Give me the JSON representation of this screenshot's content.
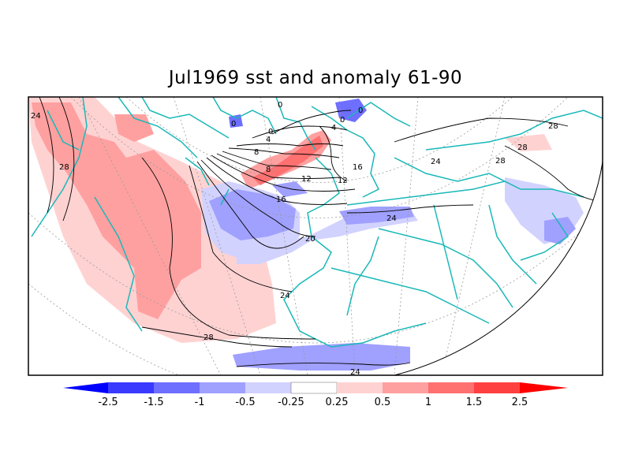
{
  "title": "Jul1969 sst and anomaly 61-90",
  "contour_labels": [
    "24",
    "28",
    "28",
    "0",
    "0",
    "4",
    "0",
    "0",
    "0",
    "8",
    "4",
    "8",
    "12",
    "16",
    "16",
    "12",
    "20",
    "24",
    "24",
    "28",
    "24",
    "28",
    "28",
    "24"
  ],
  "colorbar": {
    "ticks": [
      "-2.5",
      "-1.5",
      "-1",
      "-0.5",
      "-0.25",
      "0.25",
      "0.5",
      "1",
      "1.5",
      "2.5"
    ],
    "colors": [
      "#0000ff",
      "#3a3aff",
      "#6e6eff",
      "#a0a0ff",
      "#d2d2ff",
      "#ffffff",
      "#ffd2d2",
      "#ffa0a0",
      "#ff7070",
      "#ff4040",
      "#ff0000"
    ]
  },
  "colors": {
    "coast": "#1ab8b8",
    "neg_light": "#d2d2ff",
    "neg_mid": "#a0a0ff",
    "neg_dark": "#6e6eff",
    "pos_light": "#ffd2d2",
    "pos_mid": "#ffa0a0",
    "pos_dark": "#ff7070"
  }
}
